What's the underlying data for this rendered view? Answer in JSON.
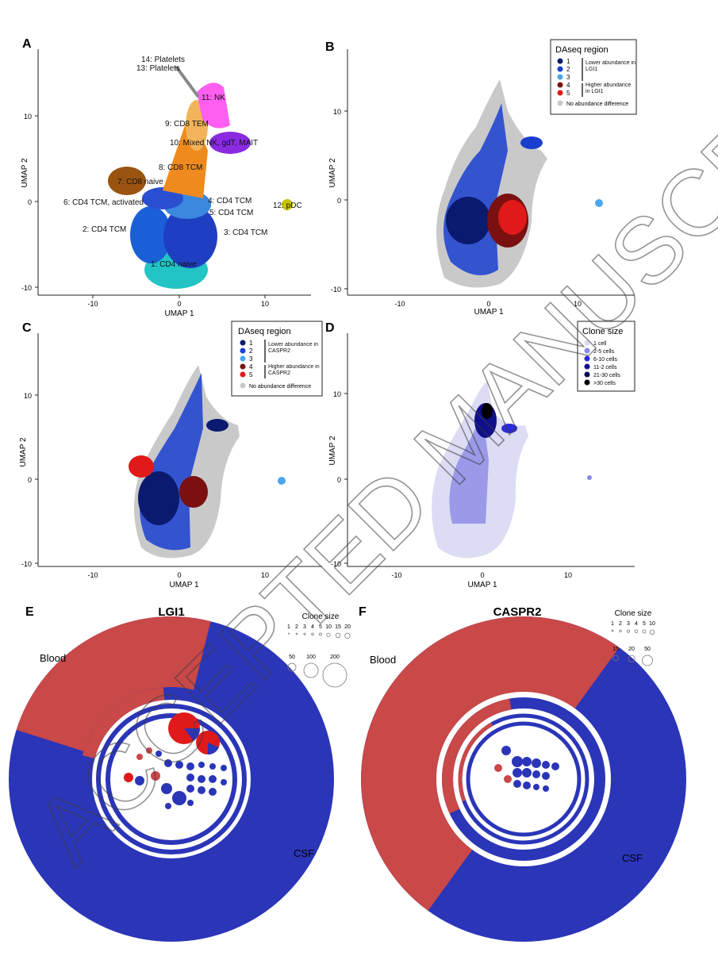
{
  "panels": {
    "A": {
      "letter": "A",
      "xlabel": "UMAP 1",
      "ylabel": "UMAP 2",
      "xticks": [
        "-10",
        "0",
        "10"
      ],
      "yticks": [
        "10",
        "0",
        "-10"
      ],
      "clusters": [
        {
          "label": "1: CD4 naive",
          "color": "#22c4c4"
        },
        {
          "label": "2: CD4 TCM",
          "color": "#1a5fd6"
        },
        {
          "label": "3: CD4 TCM",
          "color": "#1f3fc2"
        },
        {
          "label": "4: CD4 TCM",
          "color": "#2e6fdc"
        },
        {
          "label": "5: CD4 TCM",
          "color": "#3a87e0"
        },
        {
          "label": "6: CD4 TCM, activated",
          "color": "#2a4fd0"
        },
        {
          "label": "7: CD8 naive",
          "color": "#9a5410"
        },
        {
          "label": "8: CD8 TCM",
          "color": "#ef8a1f"
        },
        {
          "label": "9: CD8 TEM",
          "color": "#f2b45a"
        },
        {
          "label": "10: Mixed NK, gdT, MAIT",
          "color": "#8a2be2"
        },
        {
          "label": "11: NK",
          "color": "#ff5ef0"
        },
        {
          "label": "12: pDC",
          "color": "#c8c400"
        },
        {
          "label": "13: Platelets",
          "color": "#888888"
        },
        {
          "label": "14: Platelets",
          "color": "#999999"
        }
      ]
    },
    "B": {
      "letter": "B",
      "xlabel": "UMAP 1",
      "ylabel": "UMAP 2",
      "xticks": [
        "-10",
        "0",
        "10"
      ],
      "yticks": [
        "10",
        "0",
        "-10"
      ],
      "legend": {
        "title": "DAseq region",
        "items": [
          {
            "label": "1",
            "color": "#0a1a6e"
          },
          {
            "label": "2",
            "color": "#1a3fd0"
          },
          {
            "label": "3",
            "color": "#4aa6ee"
          },
          {
            "label": "4",
            "color": "#7a1010"
          },
          {
            "label": "5",
            "color": "#e01a1a"
          }
        ],
        "group_low": "Lower abundance in LGI1",
        "group_high": "Higher abundance in LGI1",
        "none": "No abundance difference",
        "none_color": "#c9c9c9"
      }
    },
    "C": {
      "letter": "C",
      "xlabel": "UMAP 1",
      "ylabel": "UMAP 2",
      "xticks": [
        "-10",
        "0",
        "10"
      ],
      "yticks": [
        "10",
        "0",
        "-10"
      ],
      "legend": {
        "title": "DAseq region",
        "items": [
          {
            "label": "1",
            "color": "#0a1a6e"
          },
          {
            "label": "2",
            "color": "#1a3fd0"
          },
          {
            "label": "3",
            "color": "#4aa6ee"
          },
          {
            "label": "4",
            "color": "#7a1010"
          },
          {
            "label": "5",
            "color": "#e01a1a"
          }
        ],
        "group_low": "Lower abundance in CASPR2",
        "group_high": "Higher abundance in CASPR2",
        "none": "No abundance difference",
        "none_color": "#c9c9c9"
      }
    },
    "D": {
      "letter": "D",
      "xlabel": "UMAP 1",
      "ylabel": "UMAP 2",
      "xticks": [
        "-10",
        "0",
        "10"
      ],
      "yticks": [
        "10",
        "0",
        "-10"
      ],
      "legend": {
        "title": "Clone size",
        "items": [
          {
            "label": "1 cell",
            "color": "#dcdcf4"
          },
          {
            "label": "2-5 cells",
            "color": "#8a8ae6"
          },
          {
            "label": "6-10 cells",
            "color": "#2a2ad8"
          },
          {
            "label": "11-2 cells",
            "color": "#10108a"
          },
          {
            "label": "21-30 cells",
            "color": "#0a0a55"
          },
          {
            "label": ">30 cells",
            "color": "#000000"
          }
        ]
      }
    },
    "E": {
      "letter": "E",
      "title": "LGI1",
      "blood_label": "Blood",
      "csf_label": "CSF",
      "clone_size_title": "Clone size",
      "clone_size_row1": [
        "1",
        "2",
        "3",
        "4",
        "5",
        "10",
        "15",
        "20"
      ],
      "clone_size_row2": [
        "50",
        "100",
        "200"
      ],
      "blood_fraction": 0.24
    },
    "F": {
      "letter": "F",
      "title": "CASPR2",
      "blood_label": "Blood",
      "csf_label": "CSF",
      "clone_size_title": "Clone size",
      "clone_size_row1": [
        "1",
        "2",
        "3",
        "4",
        "5",
        "10"
      ],
      "clone_size_row2": [
        "15",
        "20",
        "50"
      ],
      "blood_fraction": 0.5
    }
  },
  "colors": {
    "blood": "#c94848",
    "csf": "#2b35b8",
    "watermark": "rgba(90,90,90,0.45)"
  },
  "watermark": {
    "text": "ACCEPTED MANUSCRIPT"
  }
}
